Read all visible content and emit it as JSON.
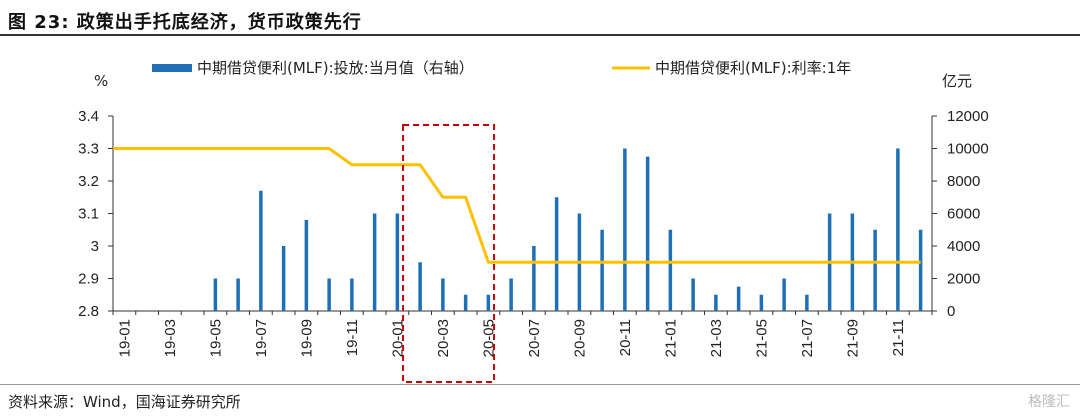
{
  "figure": {
    "title": "图 23:  政策出手托底经济，货币政策先行",
    "source": "资料来源：Wind，国海证券研究所",
    "watermark": "格隆汇"
  },
  "colors": {
    "bar": "#1f6fb6",
    "line": "#ffc000",
    "highlight": "#c00000"
  },
  "chart_data": {
    "type": "bar",
    "left_unit": "%",
    "right_unit": "亿元",
    "y_left": {
      "min": 2.8,
      "max": 3.4,
      "ticks": [
        "2.8",
        "2.9",
        "3",
        "3.1",
        "3.2",
        "3.3",
        "3.4"
      ]
    },
    "y_right": {
      "min": 0,
      "max": 12000,
      "ticks": [
        "0",
        "2000",
        "4000",
        "6000",
        "8000",
        "10000",
        "12000"
      ]
    },
    "x_tick_labels": [
      "19-01",
      "19-03",
      "19-05",
      "19-07",
      "19-09",
      "19-11",
      "20-01",
      "20-03",
      "20-05",
      "20-07",
      "20-09",
      "20-11",
      "21-01",
      "21-03",
      "21-05",
      "21-07",
      "21-09",
      "21-11"
    ],
    "months": [
      "19-01",
      "19-02",
      "19-03",
      "19-04",
      "19-05",
      "19-06",
      "19-07",
      "19-08",
      "19-09",
      "19-10",
      "19-11",
      "19-12",
      "20-01",
      "20-02",
      "20-03",
      "20-04",
      "20-05",
      "20-06",
      "20-07",
      "20-08",
      "20-09",
      "20-10",
      "20-11",
      "20-12",
      "21-01",
      "21-02",
      "21-03",
      "21-04",
      "21-05",
      "21-06",
      "21-07",
      "21-08",
      "21-09",
      "21-10",
      "21-11",
      "21-12"
    ],
    "series": [
      {
        "name": "中期借贷便利(MLF):投放:当月值（右轴）",
        "type": "bar",
        "axis": "right",
        "values": [
          0,
          0,
          0,
          0,
          2000,
          2000,
          7400,
          4000,
          5600,
          2000,
          2000,
          6000,
          6000,
          3000,
          2000,
          1000,
          1000,
          2000,
          4000,
          7000,
          6000,
          5000,
          10000,
          9500,
          5000,
          2000,
          1000,
          1500,
          1000,
          2000,
          1000,
          6000,
          6000,
          5000,
          10000,
          5000
        ]
      },
      {
        "name": "中期借贷便利(MLF):利率:1年",
        "type": "line",
        "axis": "left",
        "values": [
          3.3,
          3.3,
          3.3,
          3.3,
          3.3,
          3.3,
          3.3,
          3.3,
          3.3,
          3.3,
          3.25,
          3.25,
          3.25,
          3.25,
          3.15,
          3.15,
          2.95,
          2.95,
          2.95,
          2.95,
          2.95,
          2.95,
          2.95,
          2.95,
          2.95,
          2.95,
          2.95,
          2.95,
          2.95,
          2.95,
          2.95,
          2.95,
          2.95,
          2.95,
          2.95,
          2.95
        ]
      }
    ],
    "annotations": [
      {
        "type": "dashed-box",
        "from": "20-02",
        "to": "20-05",
        "note": ""
      }
    ],
    "legend_position": "top",
    "grid": false
  }
}
